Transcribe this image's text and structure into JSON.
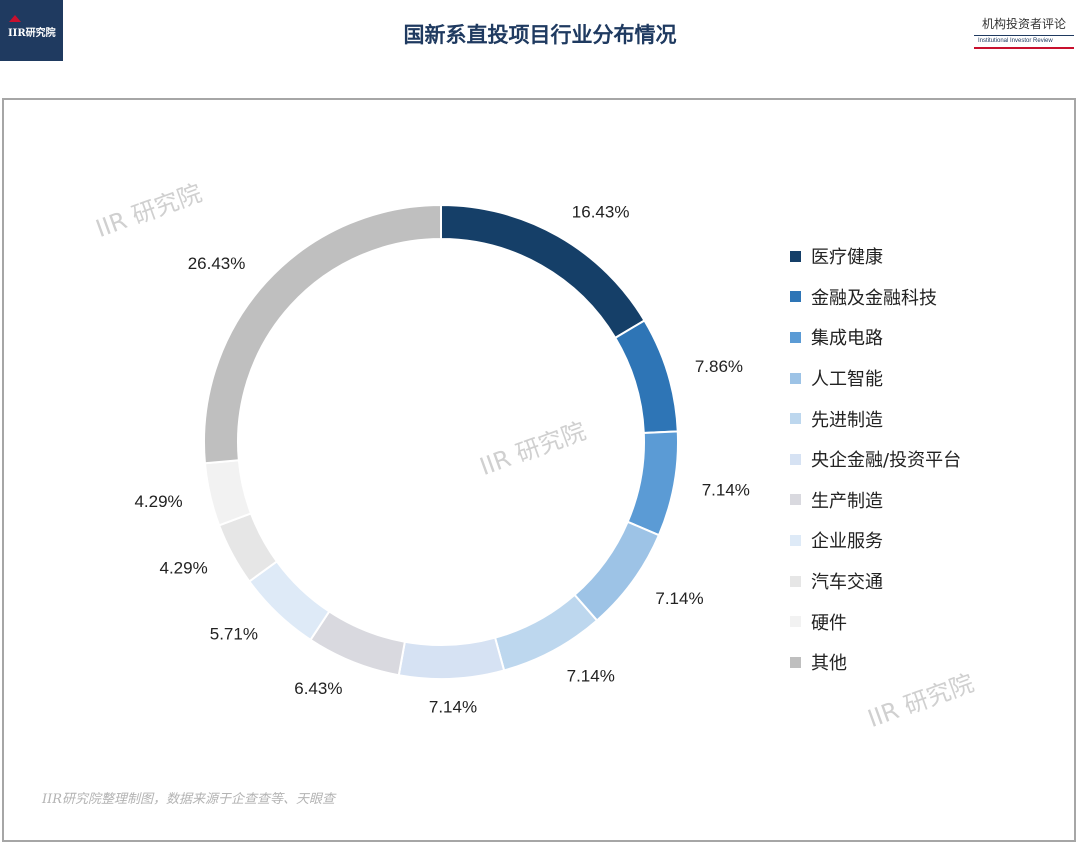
{
  "header": {
    "logo_text": "IIR研究院",
    "title": "国新系直投项目行业分布情况",
    "brand_cn": "机构投资者评论",
    "brand_en": "Institutional Investor Review"
  },
  "watermark_text": "IIR 研究院",
  "source_note": "IIR研究院整理制图，数据来源于企查查等、天眼查",
  "chart_data": {
    "type": "pie",
    "variant": "donut",
    "title": "国新系直投项目行业分布情况",
    "legend_position": "right",
    "categories": [
      "医疗健康",
      "金融及金融科技",
      "集成电路",
      "人工智能",
      "先进制造",
      "央企金融/投资平台",
      "生产制造",
      "企业服务",
      "汽车交通",
      "硬件",
      "其他"
    ],
    "values": [
      16.43,
      7.86,
      7.14,
      7.14,
      7.14,
      7.14,
      6.43,
      5.71,
      4.29,
      4.29,
      26.43
    ],
    "labels": [
      "16.43%",
      "7.86%",
      "7.14%",
      "7.14%",
      "7.14%",
      "7.14%",
      "6.43%",
      "5.71%",
      "4.29%",
      "4.29%",
      "26.43%"
    ],
    "colors": [
      "#153f68",
      "#2e75b6",
      "#5b9bd5",
      "#9dc3e6",
      "#bdd7ee",
      "#d6e2f3",
      "#d9d9df",
      "#deeaf7",
      "#e6e6e6",
      "#f2f2f2",
      "#bfbfbf"
    ]
  }
}
